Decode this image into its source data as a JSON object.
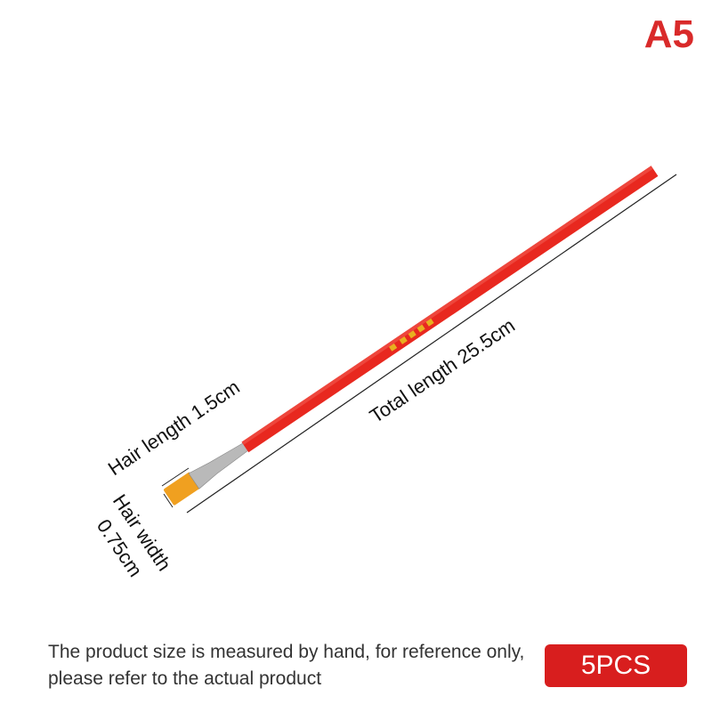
{
  "variant_label": "A5",
  "dimensions": {
    "hair_length": "Hair length 1.5cm",
    "total_length": "Total length 25.5cm",
    "hair_width_line1": "Hair width",
    "hair_width_line2": "0.75cm"
  },
  "note": "The product size is measured by hand, for reference only, please refer to the actual product",
  "quantity_badge": "5PCS",
  "colors": {
    "accent": "#d81e1e",
    "handle": "#e8281f",
    "bristles": "#f0a020",
    "ferrule": "#b8b8b8"
  }
}
